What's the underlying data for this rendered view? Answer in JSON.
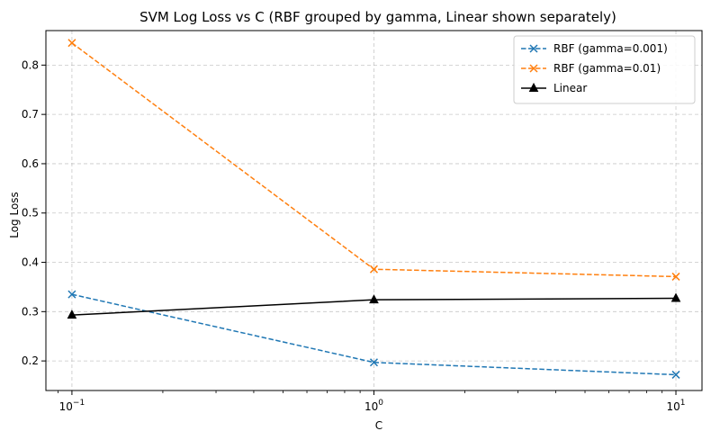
{
  "chart_data": {
    "type": "line",
    "title": "SVM Log Loss vs C (RBF grouped by gamma, Linear shown separately)",
    "xlabel": "C",
    "ylabel": "Log Loss",
    "xscale": "log",
    "xlim": [
      0.082,
      12.2
    ],
    "ylim": [
      0.14,
      0.87
    ],
    "x": [
      0.1,
      1,
      10
    ],
    "xticks": [
      {
        "value": 0.1,
        "base": "10",
        "exp": "−1"
      },
      {
        "value": 1,
        "base": "10",
        "exp": "0"
      },
      {
        "value": 10,
        "base": "10",
        "exp": "1"
      }
    ],
    "yticks": [
      {
        "value": 0.2,
        "label": "0.2"
      },
      {
        "value": 0.3,
        "label": "0.3"
      },
      {
        "value": 0.4,
        "label": "0.4"
      },
      {
        "value": 0.5,
        "label": "0.5"
      },
      {
        "value": 0.6,
        "label": "0.6"
      },
      {
        "value": 0.7,
        "label": "0.7"
      },
      {
        "value": 0.8,
        "label": "0.8"
      }
    ],
    "grid": true,
    "legend_position": "top-right",
    "series": [
      {
        "name": "RBF (gamma=0.001)",
        "values": [
          0.335,
          0.197,
          0.172
        ],
        "color": "#1f77b4",
        "linestyle": "dashed",
        "marker": "x"
      },
      {
        "name": "RBF (gamma=0.01)",
        "values": [
          0.845,
          0.386,
          0.371
        ],
        "color": "#ff7f0e",
        "linestyle": "dashed",
        "marker": "x"
      },
      {
        "name": "Linear",
        "values": [
          0.293,
          0.324,
          0.327
        ],
        "color": "#000000",
        "linestyle": "solid",
        "marker": "triangle"
      }
    ]
  }
}
